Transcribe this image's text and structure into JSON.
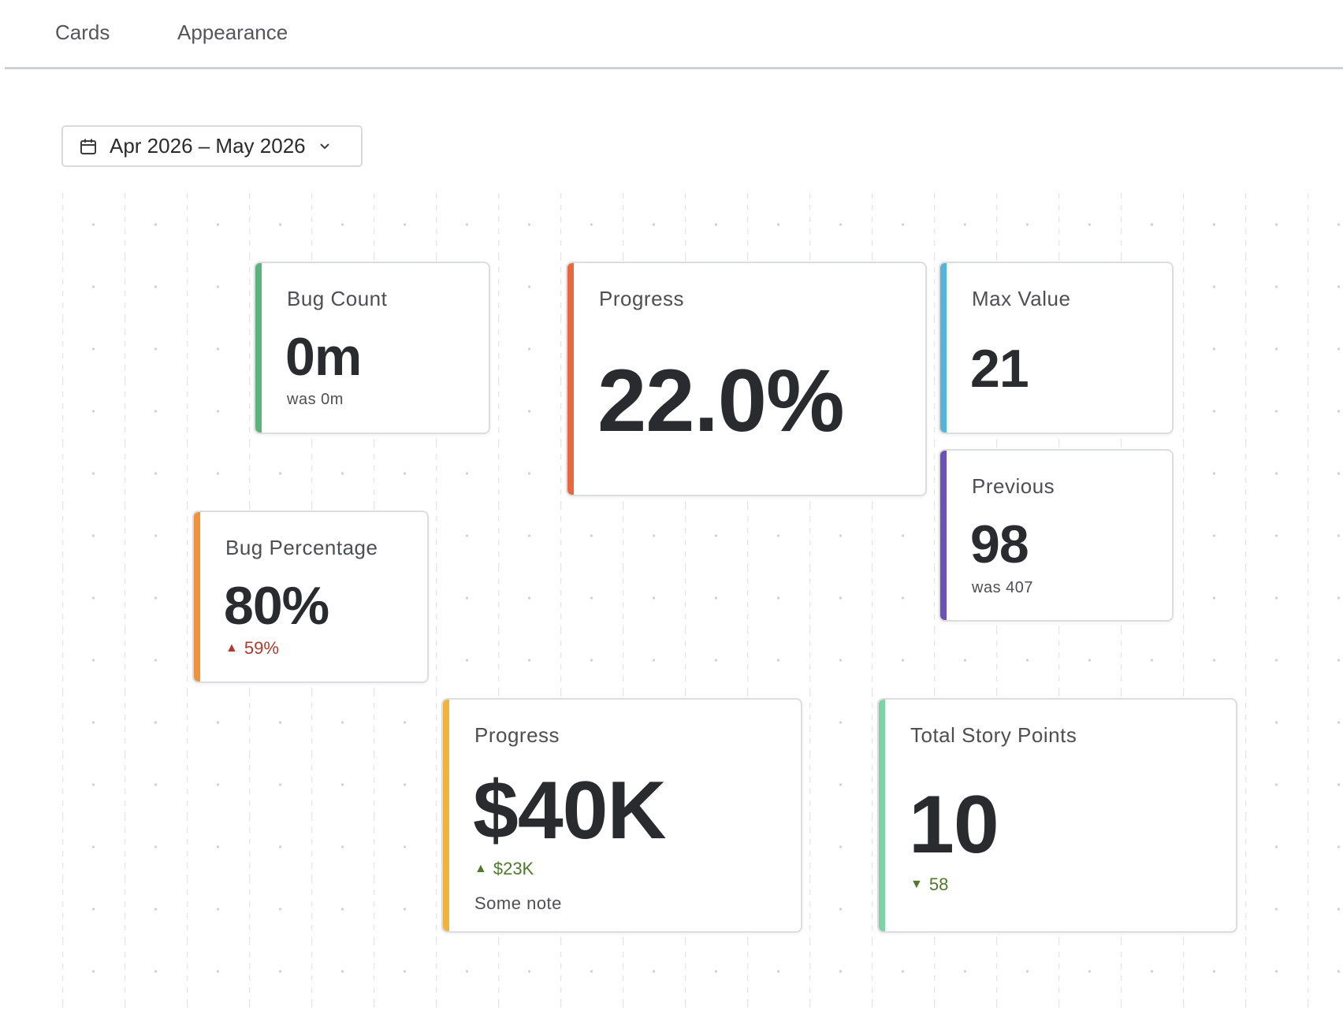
{
  "tabs": [
    {
      "label": "Cards"
    },
    {
      "label": "Appearance"
    }
  ],
  "date_range": {
    "label": "Apr 2026 – May 2026",
    "icon": "calendar-icon",
    "dropdown_icon": "chevron-down-icon"
  },
  "cards": {
    "bug_count": {
      "title": "Bug Count",
      "value": "0m",
      "sub": "was 0m",
      "accent": "#5bb27a"
    },
    "progress_pct": {
      "title": "Progress",
      "value": "22.0%",
      "accent": "#e8673f"
    },
    "max_value": {
      "title": "Max Value",
      "value": "21",
      "accent": "#55b3dc"
    },
    "previous": {
      "title": "Previous",
      "value": "98",
      "sub": "was 407",
      "accent": "#6a52b8"
    },
    "bug_percentage": {
      "title": "Bug Percentage",
      "value": "80%",
      "delta": "59%",
      "delta_dir": "up",
      "delta_color": "#b03a2e",
      "accent": "#f0923a"
    },
    "progress_money": {
      "title": "Progress",
      "value": "$40K",
      "delta": "$23K",
      "delta_dir": "up",
      "delta_color": "#4f7a2b",
      "note": "Some note",
      "accent": "#f2b33d"
    },
    "total_story_points": {
      "title": "Total Story Points",
      "value": "10",
      "delta": "58",
      "delta_dir": "down",
      "delta_color": "#4f7a2b",
      "accent": "#7dd3a6"
    }
  }
}
